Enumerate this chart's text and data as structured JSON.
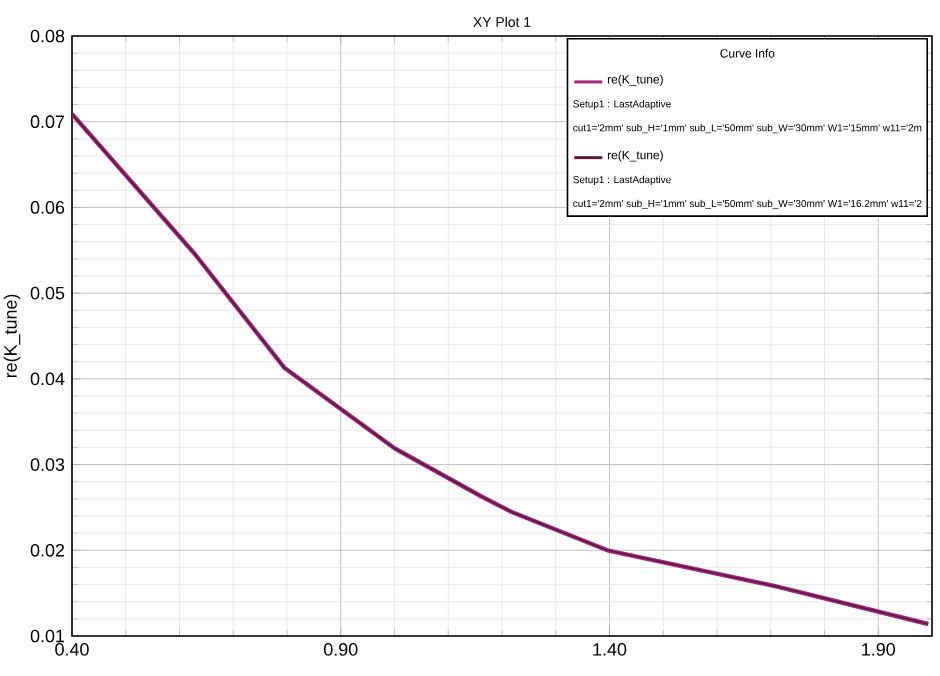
{
  "chart_data": {
    "type": "line",
    "title": "XY Plot 1",
    "ylabel": "re(K_tune)",
    "legend_title": "Curve Info",
    "legend": "top right",
    "grid": true,
    "xlim": [
      0.4,
      2.0
    ],
    "xticks": [
      {
        "value": 0.4,
        "label": "0.40"
      },
      {
        "value": 0.9,
        "label": "0.90"
      },
      {
        "value": 1.4,
        "label": "1.40"
      },
      {
        "value": 1.9,
        "label": "1.90"
      }
    ],
    "ylim": [
      0.01,
      0.08
    ],
    "yticks": [
      0.01,
      0.02,
      0.03,
      0.04,
      0.05,
      0.06,
      0.07,
      0.08
    ],
    "x": [
      0.4,
      0.628,
      0.795,
      1.0,
      1.161,
      1.217,
      1.396,
      1.71,
      1.993
    ],
    "series": [
      {
        "name": "re(K_tune)",
        "color": "#a0287f",
        "values": [
          0.0709,
          0.0546,
          0.0413,
          0.0319,
          0.0263,
          0.0245,
          0.02,
          0.0158,
          0.0114
        ]
      },
      {
        "name": "re(K_tune)",
        "color": "#5a1a3a",
        "values": [
          0.0709,
          0.0546,
          0.0413,
          0.0319,
          0.0263,
          0.0245,
          0.02,
          0.0158,
          0.0114
        ]
      }
    ],
    "annotations": [
      "Setup1 : LastAdaptive",
      "cut1='2mm' sub_H='1mm' sub_L='50mm' sub_W='30mm' W1='15mm' w11='2m",
      "Setup1 : LastAdaptive",
      "cut1='2mm' sub_H='1mm' sub_L='50mm' sub_W='30mm' W1='16.2mm' w11='2"
    ]
  }
}
